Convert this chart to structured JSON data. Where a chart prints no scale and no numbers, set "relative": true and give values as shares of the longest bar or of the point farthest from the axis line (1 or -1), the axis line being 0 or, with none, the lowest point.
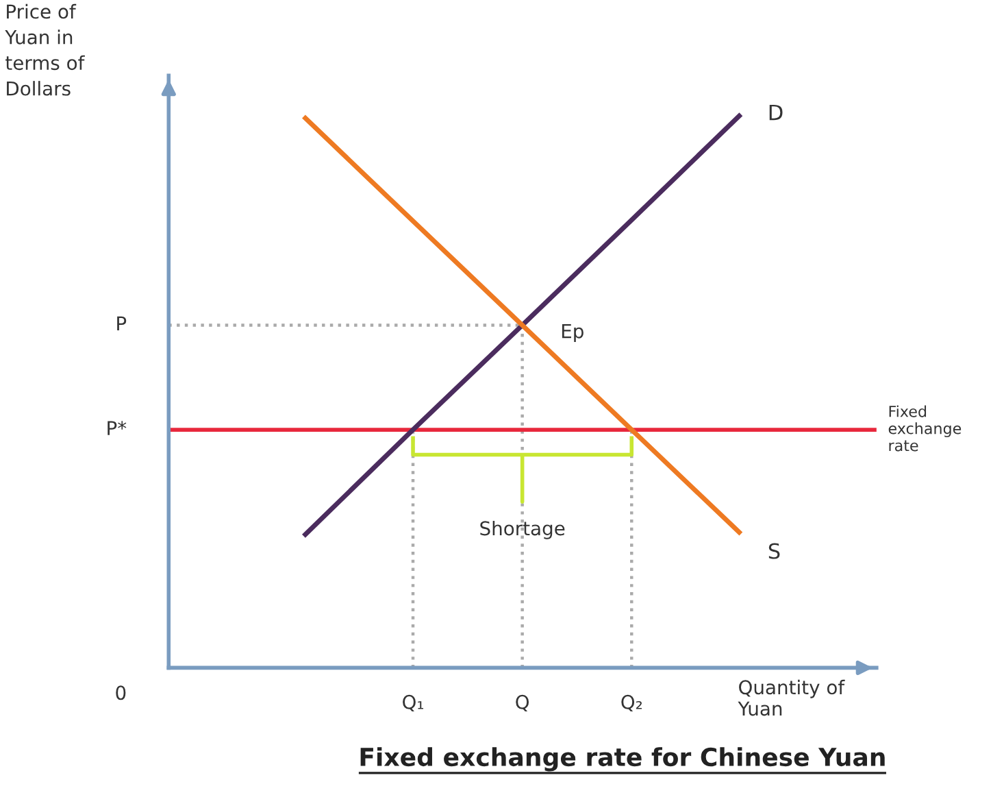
{
  "chart_data": {
    "type": "line",
    "relative": true,
    "title": "Fixed exchange rate for Chinese Yuan",
    "xlabel": "Quantity of\nYuan",
    "ylabel": "Price of\nYuan in\nterms of\nDollars",
    "categories": [
      null,
      null,
      "Q₁",
      "Q",
      "Q₂",
      null,
      null
    ],
    "series": [
      {
        "name": "D",
        "color": "#4b2c5e",
        "values": [
          null,
          0.238,
          0.43,
          0.619,
          0.809,
          1.0,
          null
        ]
      },
      {
        "name": "S",
        "color": "#ee7a22",
        "values": [
          null,
          0.996,
          0.807,
          0.619,
          0.43,
          0.242,
          null
        ]
      }
    ],
    "ref_lines": [
      {
        "axis": "y",
        "value": 0.619,
        "label": "P",
        "color": "#aaaaaa",
        "line_style": "dotted"
      },
      {
        "axis": "y",
        "value": 0.43,
        "label": "P*",
        "color": "#e8283c"
      },
      {
        "axis": "x",
        "value": "Q₁",
        "color": "#aaaaaa",
        "line_style": "dotted"
      },
      {
        "axis": "x",
        "value": "Q",
        "color": "#aaaaaa",
        "line_style": "dotted"
      },
      {
        "axis": "x",
        "value": "Q₂",
        "color": "#aaaaaa",
        "line_style": "dotted"
      }
    ],
    "annotations": [
      "0",
      {
        "text": "Ep",
        "x": "Q",
        "y": 0.619
      },
      "Fixed\nexchange\nrate",
      {
        "text": "Shortage",
        "y": 0.3
      }
    ]
  }
}
